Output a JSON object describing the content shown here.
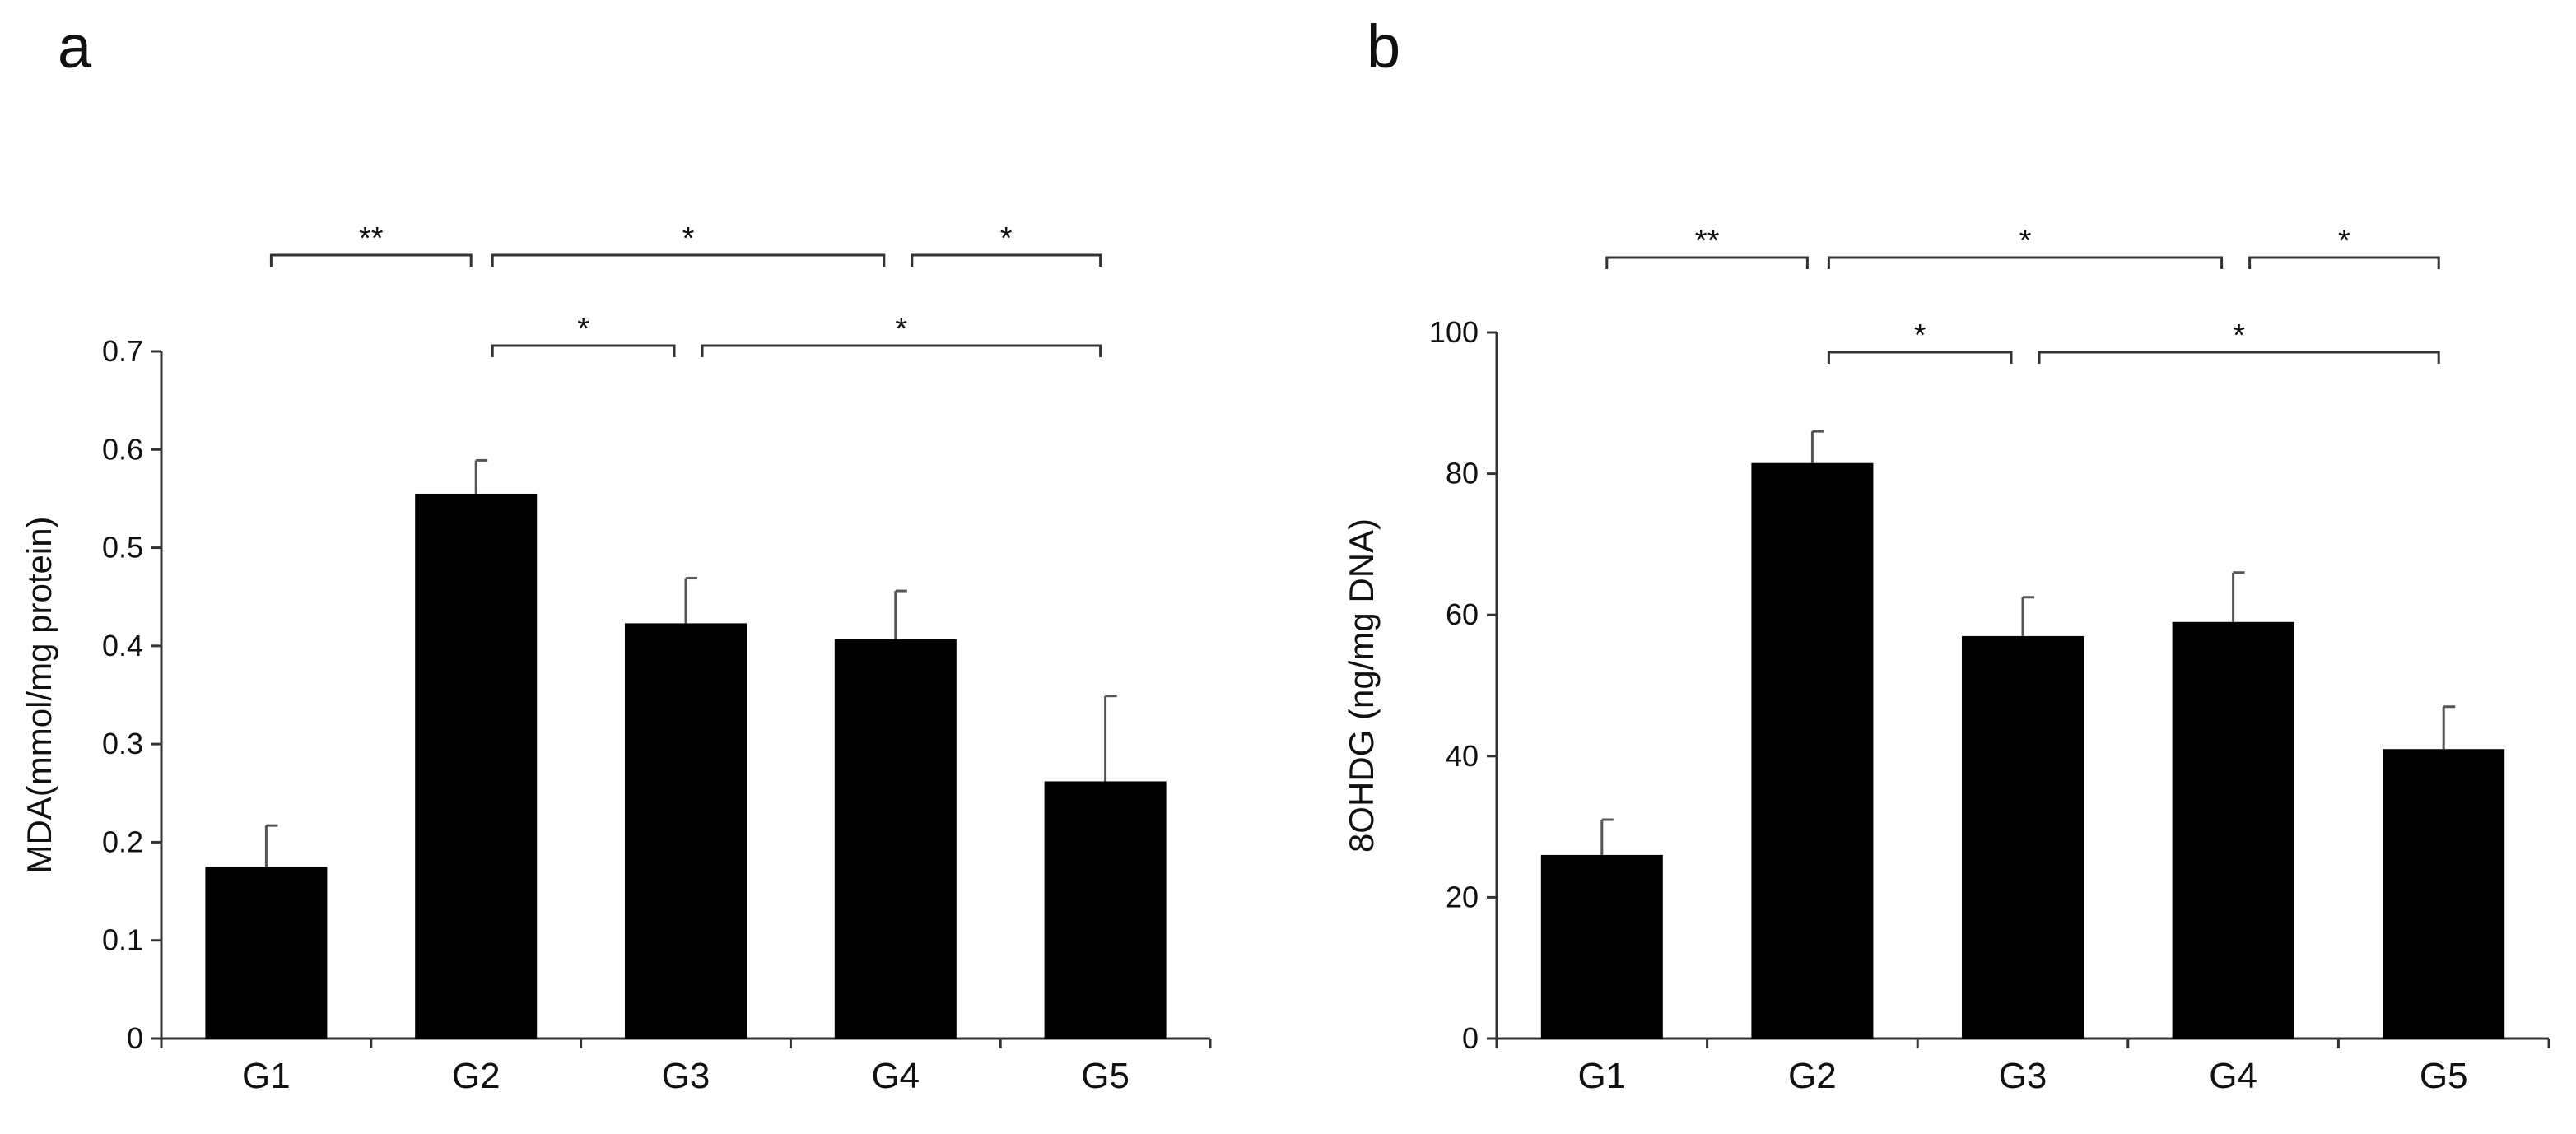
{
  "chart_data": [
    {
      "type": "bar",
      "panel_label": "a",
      "categories": [
        "G1",
        "G2",
        "G3",
        "G4",
        "G5"
      ],
      "values": [
        0.175,
        0.555,
        0.423,
        0.407,
        0.262
      ],
      "errors": [
        0.042,
        0.034,
        0.046,
        0.049,
        0.087
      ],
      "ylabel": "MDA(mmol/mg protein)",
      "xlabel": "",
      "ylim": [
        0,
        0.7
      ],
      "yticks": [
        "0",
        "0.1",
        "0.2",
        "0.3",
        "0.4",
        "0.5",
        "0.6",
        "0.7"
      ],
      "significance": [
        {
          "from": "G1",
          "to": "G2",
          "label": "**"
        },
        {
          "from": "G2",
          "to": "G4",
          "label": "*"
        },
        {
          "from": "G4",
          "to": "G5",
          "label": "*"
        },
        {
          "from": "G2",
          "to": "G3",
          "label": "*"
        },
        {
          "from": "G3",
          "to": "G5",
          "label": "*"
        }
      ]
    },
    {
      "type": "bar",
      "panel_label": "b",
      "categories": [
        "G1",
        "G2",
        "G3",
        "G4",
        "G5"
      ],
      "values": [
        26,
        81.5,
        57,
        59,
        41
      ],
      "errors": [
        5,
        4.5,
        5.5,
        7,
        6
      ],
      "ylabel": "8OHDG (ng/mg DNA)",
      "xlabel": "",
      "ylim": [
        0,
        100
      ],
      "yticks": [
        "0",
        "20",
        "40",
        "60",
        "80",
        "100"
      ],
      "significance": [
        {
          "from": "G1",
          "to": "G2",
          "label": "**"
        },
        {
          "from": "G2",
          "to": "G4",
          "label": "*"
        },
        {
          "from": "G4",
          "to": "G5",
          "label": "*"
        },
        {
          "from": "G2",
          "to": "G3",
          "label": "*"
        },
        {
          "from": "G3",
          "to": "G5",
          "label": "*"
        }
      ]
    }
  ]
}
